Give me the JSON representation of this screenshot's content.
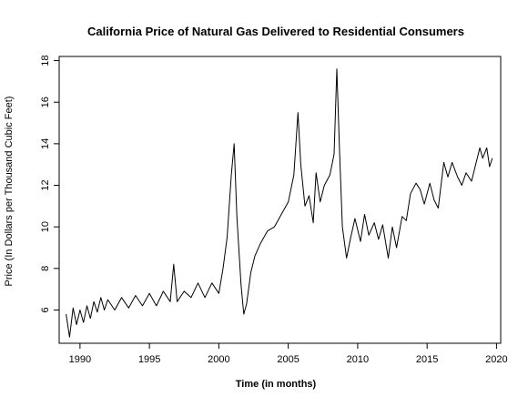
{
  "chart_data": {
    "type": "line",
    "title": "California Price of Natural Gas Delivered to Residential Consumers",
    "xlabel": "Time (in months)",
    "ylabel": "Price (In Dollars per Thousand Cubic Feet)",
    "xlim": [
      1988.5,
      2020.3
    ],
    "ylim": [
      4.4,
      18.2
    ],
    "xticks": [
      1990,
      1995,
      2000,
      2005,
      2010,
      2015,
      2020
    ],
    "yticks": [
      6,
      8,
      10,
      12,
      14,
      16,
      18
    ],
    "grid": false,
    "series": [
      {
        "color": "#000000",
        "x": [
          1989.0,
          1989.25,
          1989.5,
          1989.75,
          1990.0,
          1990.25,
          1990.5,
          1990.75,
          1991.0,
          1991.25,
          1991.5,
          1991.75,
          1992.0,
          1992.5,
          1993.0,
          1993.5,
          1994.0,
          1994.5,
          1995.0,
          1995.5,
          1996.0,
          1996.5,
          1996.75,
          1997.0,
          1997.5,
          1998.0,
          1998.5,
          1999.0,
          1999.5,
          2000.0,
          2000.3,
          2000.6,
          2000.9,
          2001.1,
          2001.3,
          2001.6,
          2001.8,
          2002.0,
          2002.3,
          2002.6,
          2003.0,
          2003.5,
          2004.0,
          2004.5,
          2005.0,
          2005.4,
          2005.7,
          2005.9,
          2006.2,
          2006.5,
          2006.8,
          2007.0,
          2007.3,
          2007.6,
          2008.0,
          2008.3,
          2008.5,
          2008.7,
          2008.9,
          2009.2,
          2009.5,
          2009.8,
          2010.2,
          2010.5,
          2010.8,
          2011.2,
          2011.5,
          2011.8,
          2012.2,
          2012.5,
          2012.8,
          2013.2,
          2013.5,
          2013.8,
          2014.2,
          2014.5,
          2014.8,
          2015.2,
          2015.5,
          2015.8,
          2016.2,
          2016.5,
          2016.8,
          2017.2,
          2017.5,
          2017.8,
          2018.2,
          2018.5,
          2018.8,
          2019.0,
          2019.3,
          2019.5,
          2019.7
        ],
        "y": [
          5.8,
          4.7,
          6.1,
          5.3,
          6.0,
          5.4,
          6.2,
          5.6,
          6.4,
          5.9,
          6.6,
          6.0,
          6.5,
          6.0,
          6.6,
          6.1,
          6.7,
          6.2,
          6.8,
          6.2,
          6.9,
          6.4,
          8.2,
          6.4,
          6.9,
          6.6,
          7.3,
          6.6,
          7.3,
          6.8,
          8.0,
          9.5,
          12.5,
          14.0,
          10.5,
          7.2,
          5.8,
          6.3,
          7.8,
          8.6,
          9.2,
          9.8,
          10.0,
          10.6,
          11.2,
          12.5,
          15.5,
          13.0,
          11.0,
          11.5,
          10.2,
          12.6,
          11.2,
          12.0,
          12.5,
          13.5,
          17.6,
          13.5,
          10.0,
          8.5,
          9.5,
          10.4,
          9.3,
          10.6,
          9.6,
          10.2,
          9.4,
          10.1,
          8.5,
          10.0,
          9.0,
          10.5,
          10.3,
          11.6,
          12.1,
          11.8,
          11.1,
          12.1,
          11.3,
          10.9,
          13.1,
          12.4,
          13.1,
          12.4,
          12.0,
          12.6,
          12.2,
          13.0,
          13.8,
          13.3,
          13.8,
          12.9,
          13.3
        ]
      }
    ]
  }
}
